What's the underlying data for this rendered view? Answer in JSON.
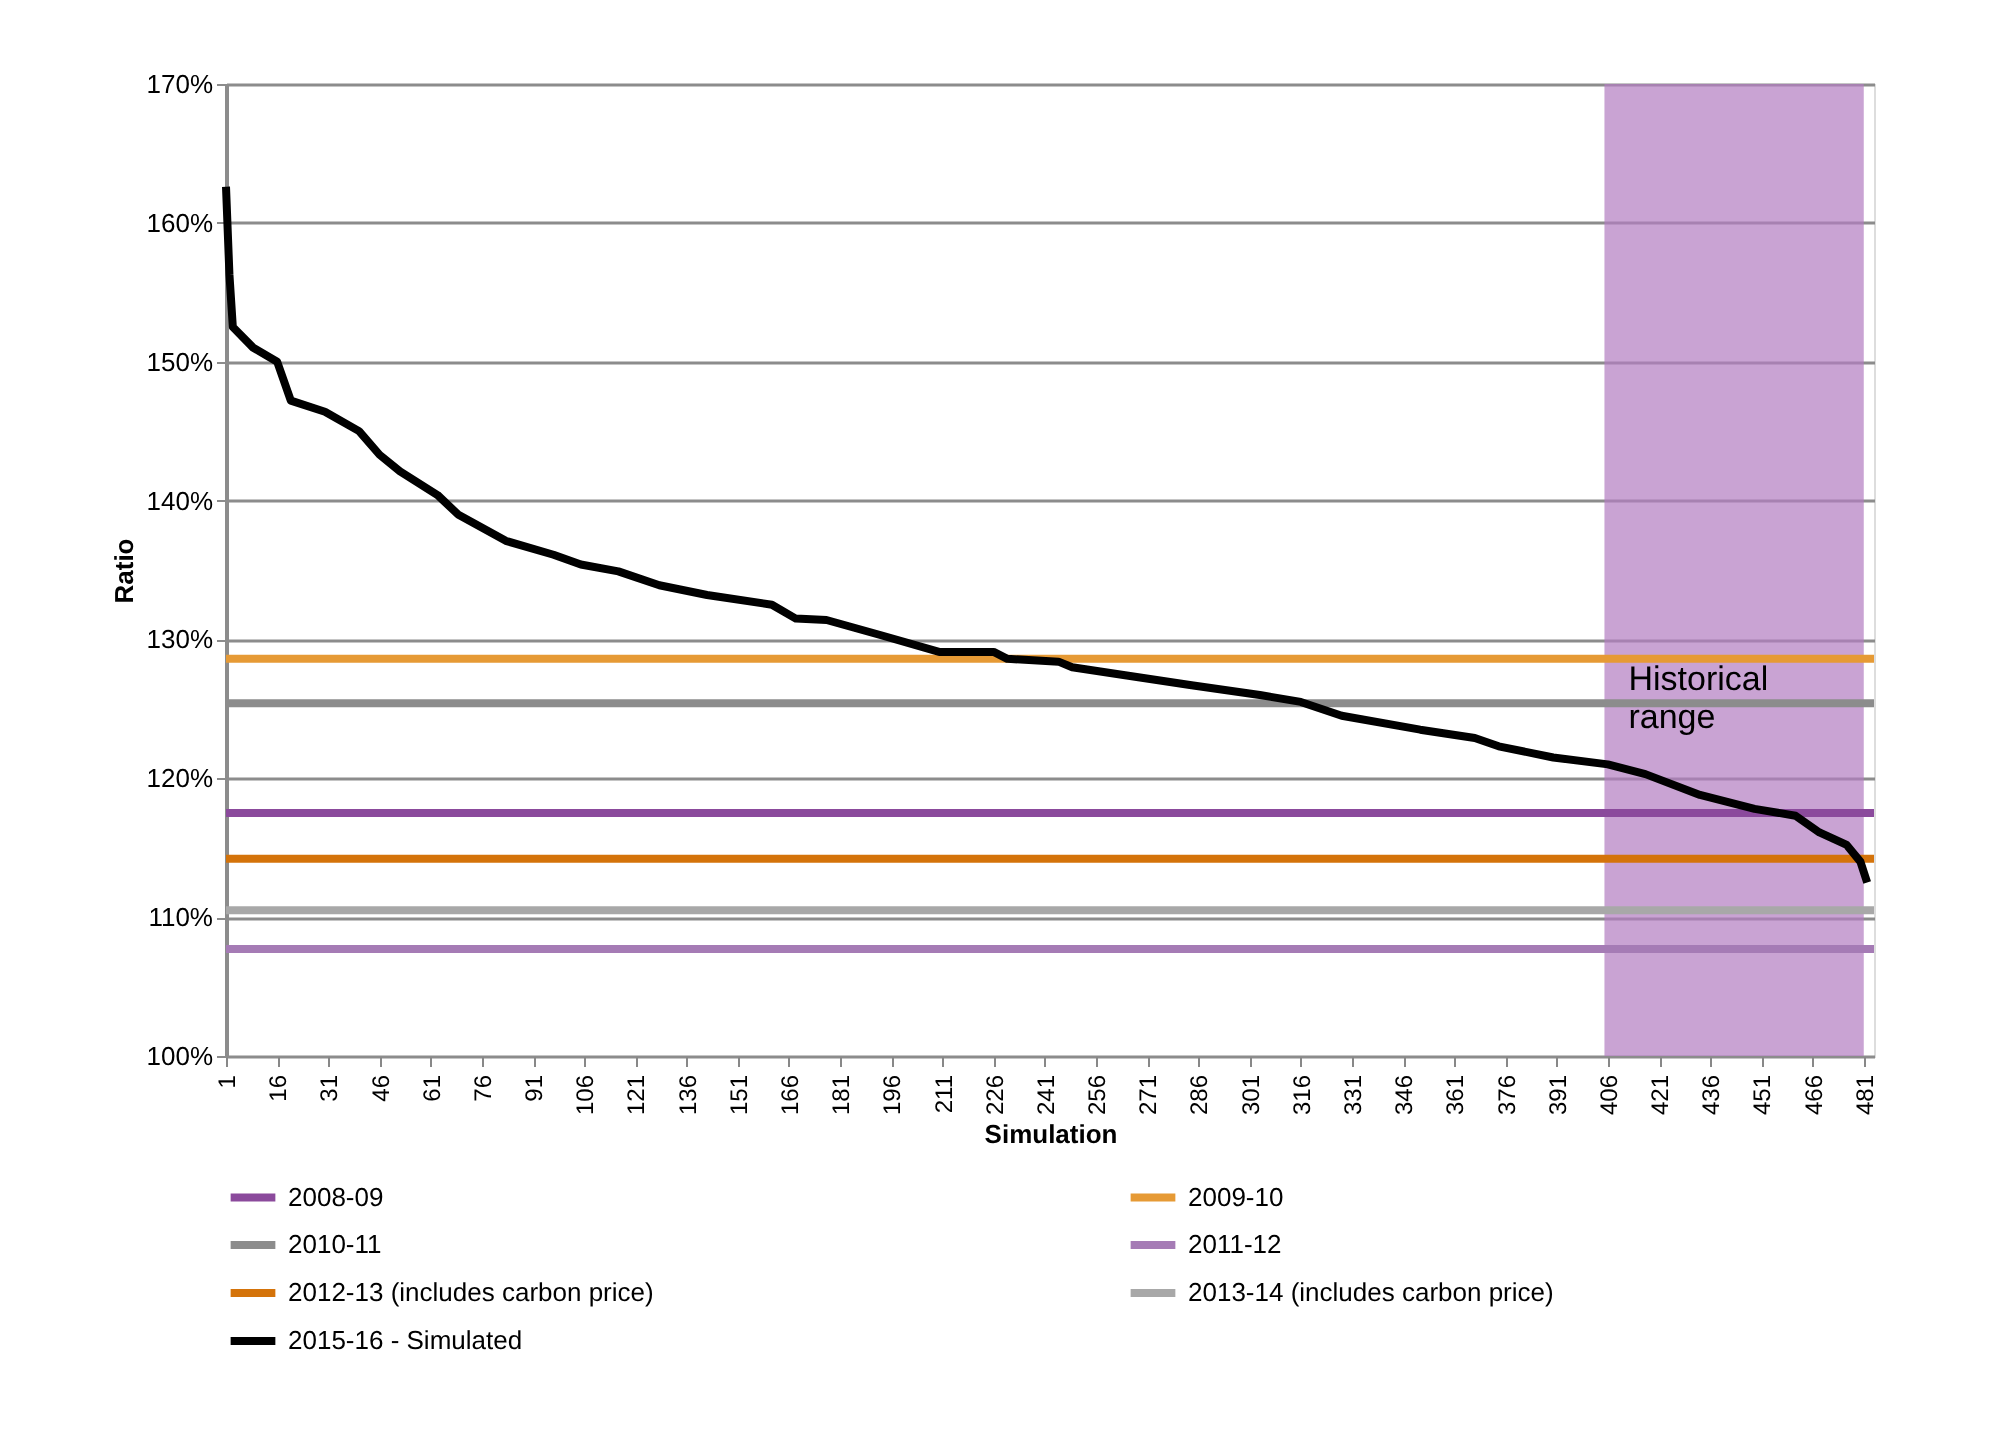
{
  "chart_data": {
    "type": "line",
    "xlabel": "Simulation",
    "ylabel": "Ratio",
    "legend": "bottom",
    "grid": "y",
    "line_style": "solid",
    "marker": "none",
    "xlim": [
      1,
      484
    ],
    "xticks": [
      1,
      16,
      31,
      46,
      61,
      76,
      91,
      106,
      121,
      136,
      151,
      166,
      181,
      196,
      211,
      226,
      241,
      256,
      271,
      286,
      301,
      316,
      331,
      346,
      361,
      376,
      391,
      406,
      421,
      436,
      451,
      466,
      481
    ],
    "ylim": [
      100,
      170
    ],
    "yticks": [
      {
        "value": 100,
        "label": "100%"
      },
      {
        "value": 110,
        "label": "110%"
      },
      {
        "value": 120,
        "label": "120%"
      },
      {
        "value": 130,
        "label": "130%"
      },
      {
        "value": 140,
        "label": "140%"
      },
      {
        "value": 150,
        "label": "150%"
      },
      {
        "value": 160,
        "label": "160%"
      },
      {
        "value": 170,
        "label": "170%"
      }
    ],
    "bands": [
      {
        "axis": "x",
        "from": 405,
        "to": 481,
        "label": "Historical range",
        "color": "#b27cc0"
      }
    ],
    "series": [
      {
        "name": "2008-09",
        "color": "#8b4a9c",
        "x": [
          1,
          484
        ],
        "values": [
          117.5,
          117.5
        ]
      },
      {
        "name": "2009-10",
        "color": "#e69a35",
        "x": [
          1,
          484
        ],
        "values": [
          128.6,
          128.6
        ]
      },
      {
        "name": "2010-11",
        "color": "#8c8c8c",
        "x": [
          1,
          484
        ],
        "values": [
          125.4,
          125.4
        ]
      },
      {
        "name": "2011-12",
        "color": "#a57bb5",
        "x": [
          1,
          484
        ],
        "values": [
          107.7,
          107.7
        ]
      },
      {
        "name": "2012-13 (includes carbon price)",
        "color": "#d4730a",
        "x": [
          1,
          484
        ],
        "values": [
          114.2,
          114.2
        ]
      },
      {
        "name": "2013-14 (includes carbon price)",
        "color": "#a8a8a8",
        "x": [
          1,
          484
        ],
        "values": [
          110.5,
          110.5
        ]
      },
      {
        "name": "2015-16 - Simulated",
        "color": "#000000",
        "x": [
          1,
          2,
          3,
          9,
          16,
          20,
          30,
          40,
          46,
          52,
          63,
          69,
          83,
          97,
          105,
          116,
          128,
          142,
          161,
          168,
          177,
          193,
          210,
          226,
          230,
          245,
          249,
          265,
          284,
          304,
          316,
          328,
          351,
          367,
          374,
          390,
          406,
          417,
          433,
          449,
          461,
          468,
          476,
          480,
          482
        ],
        "values": [
          162.6,
          156.3,
          152.5,
          151.0,
          150.0,
          147.2,
          146.4,
          145.0,
          143.3,
          142.1,
          140.4,
          139.0,
          137.1,
          136.1,
          135.4,
          134.9,
          133.9,
          133.2,
          132.5,
          131.5,
          131.4,
          130.3,
          129.1,
          129.1,
          128.6,
          128.4,
          128.0,
          127.4,
          126.7,
          126.0,
          125.5,
          124.5,
          123.5,
          122.9,
          122.3,
          121.5,
          121.0,
          120.3,
          118.8,
          117.8,
          117.3,
          116.1,
          115.2,
          114.0,
          112.5
        ]
      }
    ]
  }
}
